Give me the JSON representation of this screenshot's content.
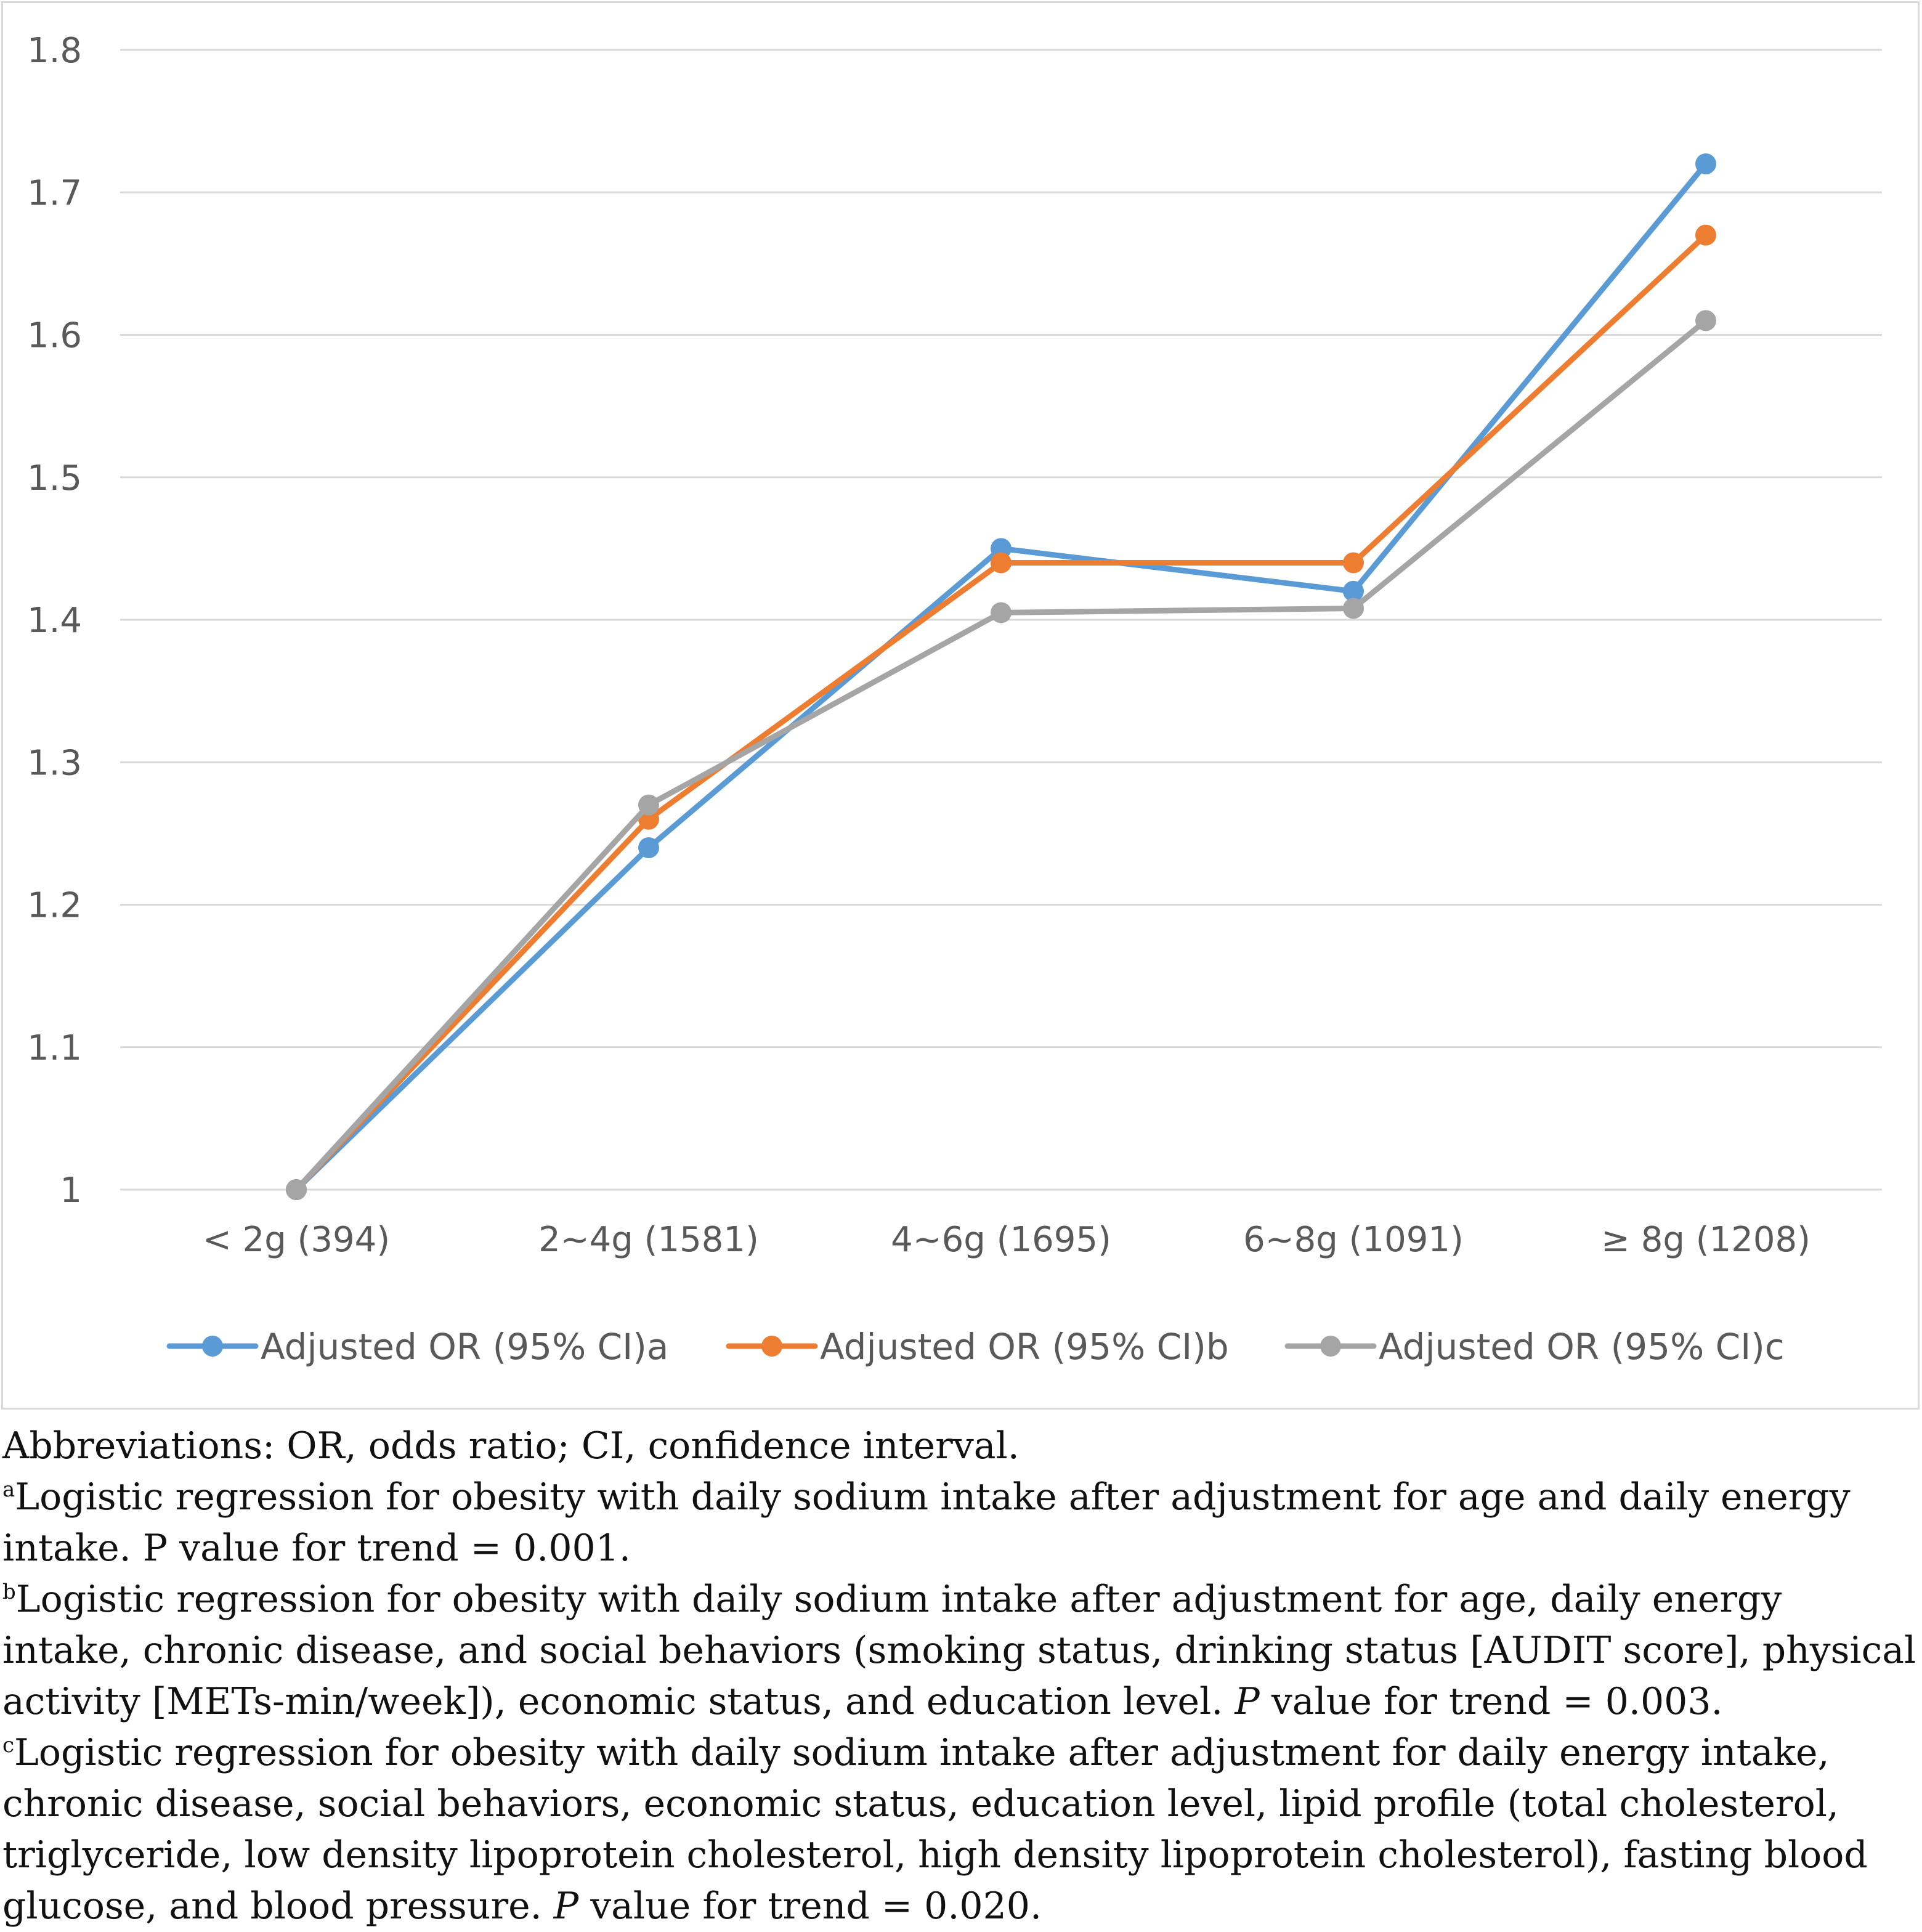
{
  "chart_data": {
    "type": "line",
    "title": "",
    "xlabel": "",
    "ylabel": "",
    "categories": [
      "< 2g (394)",
      "2~4g (1581)",
      "4~6g (1695)",
      "6~8g (1091)",
      "≥ 8g (1208)"
    ],
    "ylim": [
      1,
      1.8
    ],
    "yticks": [
      "1",
      "1.1",
      "1.2",
      "1.3",
      "1.4",
      "1.5",
      "1.6",
      "1.7",
      "1.8"
    ],
    "grid": true,
    "legend_position": "bottom",
    "series": [
      {
        "name": "Adjusted OR (95% CI)a",
        "color": "#5b9bd5",
        "values": [
          1.0,
          1.24,
          1.45,
          1.42,
          1.72
        ]
      },
      {
        "name": "Adjusted OR (95% CI)b",
        "color": "#ed7d31",
        "values": [
          1.0,
          1.26,
          1.44,
          1.44,
          1.67
        ]
      },
      {
        "name": "Adjusted OR (95% CI)c",
        "color": "#a5a5a5",
        "values": [
          1.0,
          1.27,
          1.405,
          1.408,
          1.61
        ]
      }
    ]
  },
  "notes": {
    "abbreviations": "Abbreviations: OR, odds ratio; CI, confidence interval.",
    "a_mark": "a",
    "a_text": "Logistic regression for obesity with daily sodium intake after adjustment for age and daily energy intake. P value for trend = 0.001.",
    "b_mark": "b",
    "b_text_1": "Logistic regression for obesity with daily sodium intake after adjustment for age, daily energy intake, chronic disease, and social behaviors (smoking status, drinking status [AUDIT score], physical activity [METs-min/week]), economic status, and education level.",
    "b_p": "P",
    "b_text_2": "value for trend = 0.003.",
    "c_mark": "c",
    "c_text_1": "Logistic regression for obesity with daily sodium intake after adjustment for daily energy intake, chronic disease, social behaviors, economic status, education level, lipid profile (total cholesterol, triglyceride, low density lipoprotein cholesterol, high density lipoprotein cholesterol), fasting blood glucose, and blood pressure.",
    "c_p": "P",
    "c_text_2": "value for trend = 0.020."
  }
}
